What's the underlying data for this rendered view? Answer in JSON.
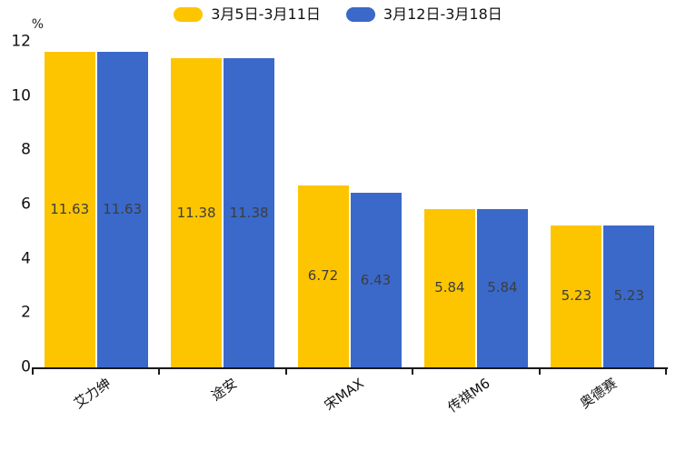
{
  "chart_data": {
    "type": "bar",
    "title": "",
    "unit_label": "%",
    "categories": [
      "艾力绅",
      "途安",
      "宋MAX",
      "传祺M6",
      "奥德赛"
    ],
    "series": [
      {
        "name": "3月5日-3月11日",
        "color": "#FDC500",
        "values": [
          11.63,
          11.38,
          6.72,
          5.84,
          5.23
        ]
      },
      {
        "name": "3月12日-3月18日",
        "color": "#3A69CA",
        "values": [
          11.63,
          11.38,
          6.43,
          5.84,
          5.23
        ]
      }
    ],
    "yticks": [
      0,
      2,
      4,
      6,
      8,
      10,
      12
    ],
    "ylim": [
      0,
      12
    ],
    "value_labels": true,
    "legend_position": "top",
    "grid": false,
    "colors": {
      "axis": "#1a1a1a",
      "tick_label": "#111111",
      "value_label": "#3d3d3d",
      "background": "#ffffff"
    }
  }
}
